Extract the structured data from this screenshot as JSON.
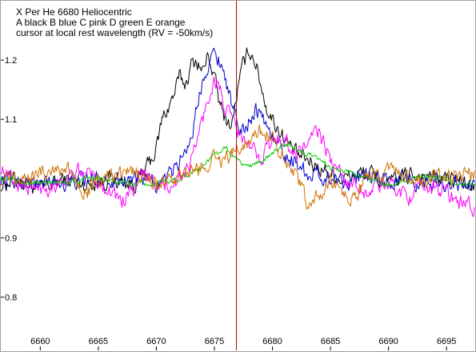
{
  "header": {
    "title": "X Per He 6680 Heliocentric",
    "legend_line": "A black   B blue   C pink   D green   E orange",
    "cursor_note": "cursor at local rest wavelength (RV = -50km/s)"
  },
  "chart_data": {
    "type": "line",
    "title": "X Per He 6680 Heliocentric",
    "xlabel": "",
    "ylabel": "",
    "xlim": [
      6656.6,
      6697.4
    ],
    "ylim": [
      0.71,
      1.3
    ],
    "x_ticks": [
      6660,
      6665,
      6670,
      6675,
      6680,
      6685,
      6690,
      6695
    ],
    "y_ticks": [
      0.8,
      0.9,
      1.0,
      1.1,
      1.2
    ],
    "y_tick_labels": [
      "0.8",
      "0.9",
      "",
      "1.1",
      "1.2"
    ],
    "grid": false,
    "cursor_x": 6676.9,
    "cursor_color": "#b00000",
    "series": [
      {
        "name": "A",
        "color": "#000000",
        "x": [
          6656.6,
          6658,
          6660,
          6662,
          6664,
          6666,
          6668,
          6669,
          6670,
          6670.5,
          6671,
          6671.5,
          6672,
          6672.5,
          6673,
          6673.5,
          6674,
          6674.5,
          6675,
          6675.5,
          6676,
          6676.5,
          6677,
          6677.5,
          6678,
          6678.5,
          6679,
          6679.5,
          6680,
          6681,
          6682,
          6684,
          6686,
          6688,
          6690,
          6692,
          6694,
          6696,
          6697.4
        ],
        "values": [
          0.99,
          1.0,
          0.98,
          1.0,
          0.99,
          1.0,
          0.99,
          1.01,
          1.05,
          1.1,
          1.12,
          1.14,
          1.17,
          1.16,
          1.19,
          1.2,
          1.18,
          1.21,
          1.17,
          1.12,
          1.1,
          1.09,
          1.15,
          1.19,
          1.22,
          1.2,
          1.16,
          1.12,
          1.1,
          1.07,
          1.04,
          1.02,
          1.0,
          1.01,
          0.99,
          1.01,
          1.0,
          1.0,
          0.98
        ]
      },
      {
        "name": "B",
        "color": "#0000cc",
        "x": [
          6656.6,
          6660,
          6665,
          6668,
          6670,
          6671,
          6672,
          6673,
          6673.5,
          6674,
          6674.5,
          6675,
          6675.5,
          6676,
          6676.5,
          6677,
          6677.5,
          6678,
          6678.5,
          6679,
          6679.5,
          6680,
          6681,
          6682,
          6683,
          6685,
          6690,
          6697.4
        ],
        "values": [
          1.0,
          0.99,
          1.0,
          1.0,
          0.99,
          1.0,
          1.03,
          1.07,
          1.12,
          1.17,
          1.2,
          1.21,
          1.2,
          1.17,
          1.12,
          1.09,
          1.08,
          1.1,
          1.12,
          1.11,
          1.09,
          1.07,
          1.04,
          1.03,
          1.01,
          1.0,
          1.0,
          0.99
        ]
      },
      {
        "name": "C",
        "color": "#ff00ff",
        "x": [
          6656.6,
          6658,
          6660,
          6662,
          6664,
          6666,
          6667,
          6668,
          6669,
          6670,
          6671,
          6672,
          6673,
          6674,
          6675,
          6675.5,
          6676,
          6676.5,
          6677,
          6678,
          6679,
          6680,
          6681,
          6682,
          6683,
          6684,
          6685,
          6686,
          6688,
          6690,
          6692,
          6694,
          6696,
          6697.4
        ],
        "values": [
          1.02,
          0.99,
          0.98,
          1.0,
          1.01,
          0.98,
          0.96,
          0.98,
          1.01,
          0.99,
          0.98,
          1.0,
          1.03,
          1.1,
          1.17,
          1.15,
          1.11,
          1.1,
          1.08,
          1.05,
          1.04,
          1.06,
          1.07,
          1.04,
          1.06,
          1.08,
          1.03,
          1.0,
          0.98,
          0.99,
          0.97,
          0.99,
          0.96,
          0.95
        ]
      },
      {
        "name": "D",
        "color": "#00cc00",
        "x": [
          6656.6,
          6660,
          6665,
          6668,
          6670,
          6672,
          6674,
          6675,
          6676,
          6676.5,
          6677,
          6678,
          6679,
          6680,
          6681,
          6682,
          6683,
          6685,
          6688,
          6690,
          6692,
          6694,
          6697.4
        ],
        "values": [
          1.0,
          0.99,
          1.0,
          0.99,
          0.99,
          1.0,
          1.02,
          1.04,
          1.05,
          1.04,
          1.03,
          1.02,
          1.03,
          1.04,
          1.06,
          1.05,
          1.04,
          1.02,
          1.0,
          0.99,
          1.0,
          1.0,
          0.99
        ]
      },
      {
        "name": "E",
        "color": "#d07000",
        "x": [
          6656.6,
          6658,
          6660,
          6662,
          6664,
          6666,
          6668,
          6670,
          6672,
          6674,
          6675,
          6676,
          6677,
          6678,
          6679,
          6680,
          6681,
          6682,
          6683,
          6684,
          6685,
          6686,
          6687,
          6688,
          6690,
          6692,
          6694,
          6696,
          6697.4
        ],
        "values": [
          1.0,
          0.99,
          1.01,
          1.02,
          0.98,
          1.0,
          1.01,
          0.99,
          1.0,
          1.02,
          1.04,
          1.03,
          1.05,
          1.07,
          1.08,
          1.07,
          1.04,
          1.0,
          0.96,
          0.97,
          0.99,
          0.98,
          0.96,
          1.0,
          1.01,
          0.99,
          1.0,
          1.0,
          1.01
        ]
      }
    ]
  }
}
